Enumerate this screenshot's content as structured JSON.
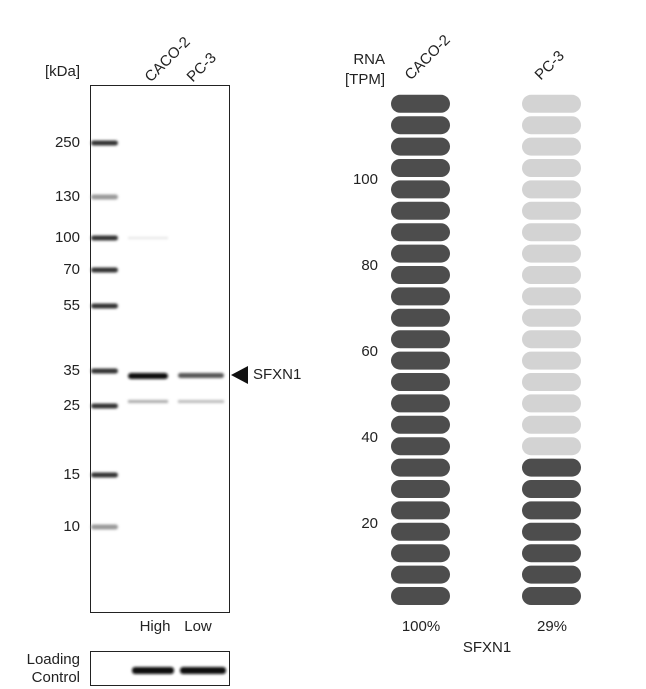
{
  "blot": {
    "unit_label": "[kDa]",
    "lanes": [
      "CACO-2",
      "PC-3"
    ],
    "markers": [
      250,
      130,
      100,
      70,
      55,
      35,
      25,
      15,
      10
    ],
    "target": "SFXN1",
    "lane_levels": [
      "High",
      "Low"
    ],
    "loading_label": [
      "Loading",
      "Control"
    ]
  },
  "rna": {
    "axis_label": [
      "RNA",
      "[TPM]"
    ],
    "yticks": [
      20,
      40,
      60,
      80,
      100
    ],
    "samples": [
      {
        "name": "CACO-2",
        "percent": 100,
        "percent_label": "100%"
      },
      {
        "name": "PC-3",
        "percent": 29,
        "percent_label": "29%"
      }
    ],
    "gene": "SFXN1"
  }
}
